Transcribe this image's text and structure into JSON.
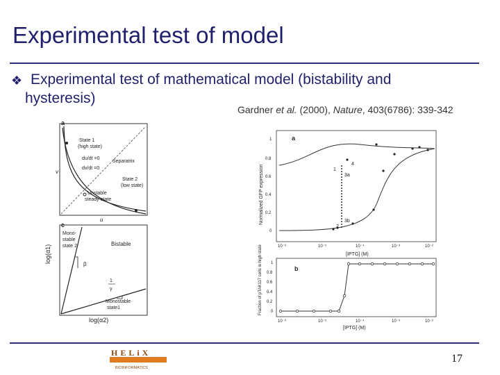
{
  "slide": {
    "title": "Experimental test of model",
    "bullet_line1": "Experimental test of mathematical model (bistability and",
    "bullet_line2": "hysteresis)",
    "citation_prefix": "Gardner ",
    "citation_etal": "et al.",
    "citation_year": " (2000), ",
    "citation_journal": "Nature",
    "citation_suffix": ", 403(6786): 339-342",
    "page_number": "17",
    "logo_main": "HELiX",
    "logo_sub": "BIOINFORMATICS"
  },
  "panel_a_left": {
    "letter": "a",
    "labels": [
      "State 1",
      "(high state)",
      "du/dt =0",
      "dv/dt =0",
      "Separatrix",
      "State 2",
      "(low state)",
      "Unstable",
      "steady-state"
    ],
    "xlabel": "u",
    "ylabel": "v"
  },
  "panel_c": {
    "letter": "c",
    "region_top_left": [
      "Mono-",
      "stable",
      "state 2"
    ],
    "region_bistable": "Bistable",
    "beta": "β",
    "one_over_gamma_num": "1",
    "one_over_gamma_den": "γ",
    "region_bottom_right": [
      "Monostable",
      "state1"
    ],
    "xlabel": "log(α2)",
    "ylabel": "log(α1)"
  },
  "panel_a_right": {
    "letter": "a",
    "ylabel": "Normalized GFP expression",
    "xlabel": "[IPTG] (M)",
    "y_ticks": [
      "1",
      "0.8",
      "0.6",
      "0.4",
      "0.2",
      "0"
    ],
    "x_ticks": [
      "10⁻⁶",
      "10⁻⁵",
      "10⁻⁴",
      "10⁻³",
      "10⁻²"
    ],
    "point_labels": [
      "1",
      "2",
      "3a",
      "3b",
      "4"
    ]
  },
  "panel_b": {
    "letter": "b",
    "ylabel": "Fraction of pTAK117 cells in high state",
    "xlabel": "[IPTG] (M)",
    "y_ticks": [
      "1",
      "0.8",
      "0.6",
      "0.4",
      "0.2",
      "0"
    ],
    "x_ticks": [
      "10⁻⁶",
      "10⁻⁵",
      "10⁻⁴",
      "10⁻³",
      "10⁻²"
    ]
  },
  "colors": {
    "title": "#1f1f6b",
    "rule": "#2d2d7a",
    "logo_orange": "#e07a1f"
  }
}
